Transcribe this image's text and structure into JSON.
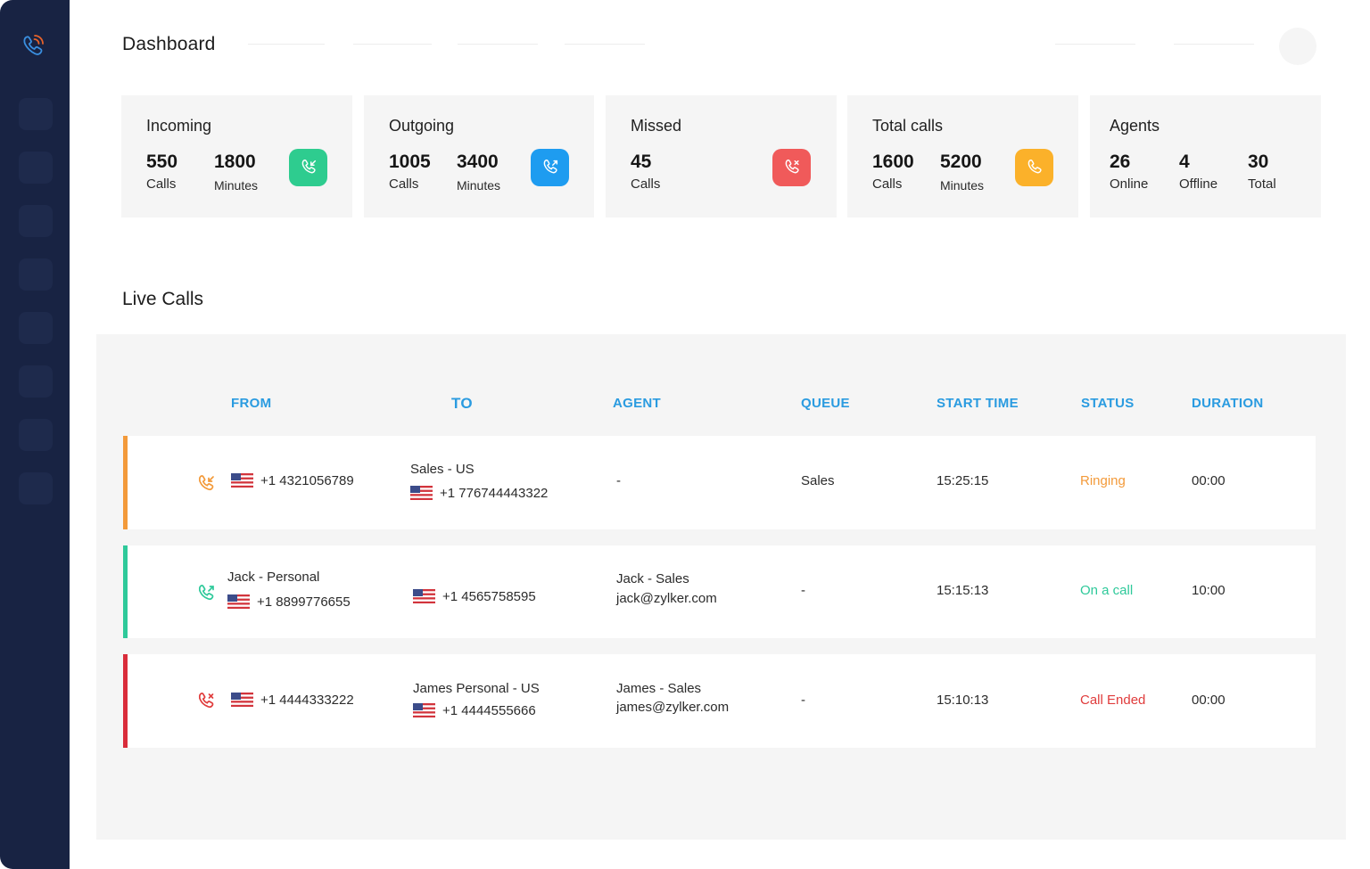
{
  "header": {
    "title": "Dashboard"
  },
  "stats": {
    "incoming": {
      "title": "Incoming",
      "metrics": [
        {
          "value": "550",
          "unit": "Calls"
        },
        {
          "value": "1800",
          "unit": "Minutes"
        }
      ],
      "icon": "incoming-call-icon",
      "color": "#2ecc8f"
    },
    "outgoing": {
      "title": "Outgoing",
      "metrics": [
        {
          "value": "1005",
          "unit": "Calls"
        },
        {
          "value": "3400",
          "unit": "Minutes"
        }
      ],
      "icon": "outgoing-call-icon",
      "color": "#1e9cf0"
    },
    "missed": {
      "title": "Missed",
      "metrics": [
        {
          "value": "45",
          "unit": "Calls"
        }
      ],
      "icon": "missed-call-icon",
      "color": "#f05a5a"
    },
    "total": {
      "title": "Total calls",
      "metrics": [
        {
          "value": "1600",
          "unit": "Calls"
        },
        {
          "value": "5200",
          "unit": "Minutes"
        }
      ],
      "icon": "phone-icon",
      "color": "#fbb12a"
    },
    "agents": {
      "title": "Agents",
      "metrics": [
        {
          "value": "26",
          "unit": "Online"
        },
        {
          "value": "4",
          "unit": "Offline"
        },
        {
          "value": "30",
          "unit": "Total"
        }
      ]
    }
  },
  "live_calls": {
    "title": "Live Calls",
    "columns": [
      "FROM",
      "TO",
      "AGENT",
      "QUEUE",
      "START TIME",
      "STATUS",
      "DURATION"
    ],
    "rows": [
      {
        "direction_icon": "incoming-call-icon",
        "from_name": "",
        "from_number": "+1 4321056789",
        "to_name": "Sales - US",
        "to_number": "+1 776744443322",
        "agent_name": "-",
        "agent_email": "",
        "queue": "Sales",
        "start_time": "15:25:15",
        "status": "Ringing",
        "status_color": "#f39a3a",
        "duration": "00:00",
        "accent": "#f39a3a"
      },
      {
        "direction_icon": "outgoing-call-icon",
        "from_name": "Jack - Personal",
        "from_number": "+1 8899776655",
        "to_name": "",
        "to_number": "+1 4565758595",
        "agent_name": "Jack - Sales",
        "agent_email": "jack@zylker.com",
        "queue": "-",
        "start_time": "15:15:13",
        "status": "On a call",
        "status_color": "#2ec99a",
        "duration": "10:00",
        "accent": "#2ec99a"
      },
      {
        "direction_icon": "missed-call-icon",
        "from_name": "",
        "from_number": "+1 4444333222",
        "to_name": "James Personal - US",
        "to_number": "+1 4444555666",
        "agent_name": "James - Sales",
        "agent_email": "james@zylker.com",
        "queue": "-",
        "start_time": "15:10:13",
        "status": "Call Ended",
        "status_color": "#e03c3c",
        "duration": "00:00",
        "accent": "#d92c3a"
      }
    ]
  }
}
